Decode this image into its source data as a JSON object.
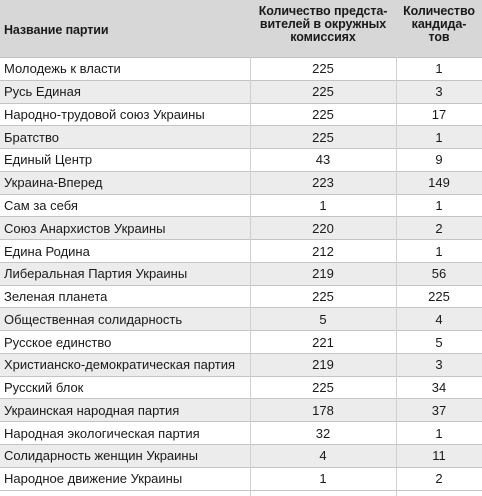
{
  "header": {
    "name": "Название партии",
    "reps": "Количество предста-\nвителей в окружных\nкомиссиях",
    "cands": "Количество\nкандида-\nтов"
  },
  "rows": [
    {
      "name": "Молодежь к власти",
      "reps": "225",
      "cands": "1"
    },
    {
      "name": "Русь Единая",
      "reps": "225",
      "cands": "3"
    },
    {
      "name": "Народно-трудовой союз Украины",
      "reps": "225",
      "cands": "17"
    },
    {
      "name": "Братство",
      "reps": "225",
      "cands": "1"
    },
    {
      "name": "Единый Центр",
      "reps": "43",
      "cands": "9"
    },
    {
      "name": "Украина-Вперед",
      "reps": "223",
      "cands": "149"
    },
    {
      "name": "Сам за себя",
      "reps": "1",
      "cands": "1"
    },
    {
      "name": "Союз Анархистов Украины",
      "reps": "220",
      "cands": "2"
    },
    {
      "name": "Едина Родина",
      "reps": "212",
      "cands": "1"
    },
    {
      "name": "Либеральная Партия Украины",
      "reps": "219",
      "cands": "56"
    },
    {
      "name": "Зеленая планета",
      "reps": "225",
      "cands": "225"
    },
    {
      "name": "Общественная солидарность",
      "reps": "5",
      "cands": "4"
    },
    {
      "name": "Русское единство",
      "reps": "221",
      "cands": "5"
    },
    {
      "name": "Христианско-демократическая партия",
      "reps": "219",
      "cands": "3"
    },
    {
      "name": "Русский блок",
      "reps": "225",
      "cands": "34"
    },
    {
      "name": "Украинская народная партия",
      "reps": "178",
      "cands": "37"
    },
    {
      "name": "Народная экологическая партия",
      "reps": "32",
      "cands": "1"
    },
    {
      "name": "Солидарность женщин Украины",
      "reps": "4",
      "cands": "11"
    },
    {
      "name": "Народное движение Украины",
      "reps": "1",
      "cands": "2"
    }
  ]
}
